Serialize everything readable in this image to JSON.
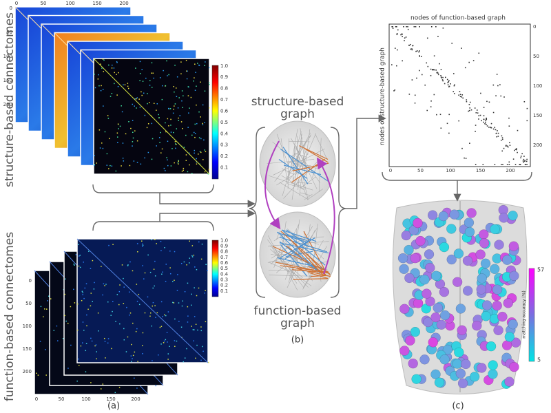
{
  "panel_a": {
    "label": "(a)",
    "structure_title": "structure-based connectomes",
    "function_title": "function-based connectomes",
    "matrix_ticks": [
      "0",
      "50",
      "100",
      "150",
      "200"
    ],
    "colorbar_ticks": [
      "0.1",
      "0.2",
      "0.3",
      "0.4",
      "0.5",
      "0.6",
      "0.7",
      "0.8",
      "0.9",
      "1.0"
    ]
  },
  "panel_b": {
    "label": "(b)",
    "structure_graph": [
      "structure-based",
      "graph"
    ],
    "function_graph": [
      "function-based",
      "graph"
    ]
  },
  "panel_c": {
    "label": "(c)",
    "x_label": "nodes of function-based graph",
    "y_label": "nodes of structure-based graph",
    "ticks": [
      "0",
      "50",
      "100",
      "150",
      "200"
    ],
    "colorbar_label": "matching accuracy (%)",
    "colorbar_max": "57",
    "colorbar_min": "5"
  }
}
